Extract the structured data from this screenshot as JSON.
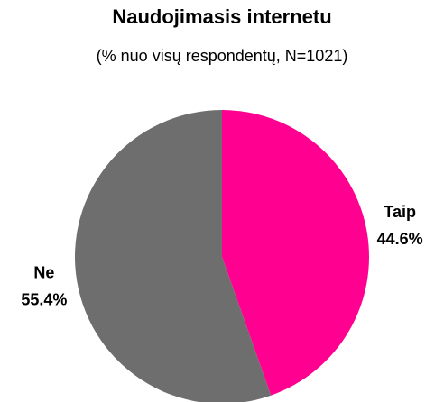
{
  "chart_data": {
    "type": "pie",
    "title": "Naudojimasis internetu",
    "subtitle": "(% nuo visų respondentų, N=1021)",
    "categories": [
      "Taip",
      "Ne"
    ],
    "values": [
      44.6,
      55.4
    ],
    "value_labels": [
      "44.6%",
      "55.4%"
    ],
    "colors": [
      "#ff0090",
      "#6e6e6e"
    ]
  }
}
